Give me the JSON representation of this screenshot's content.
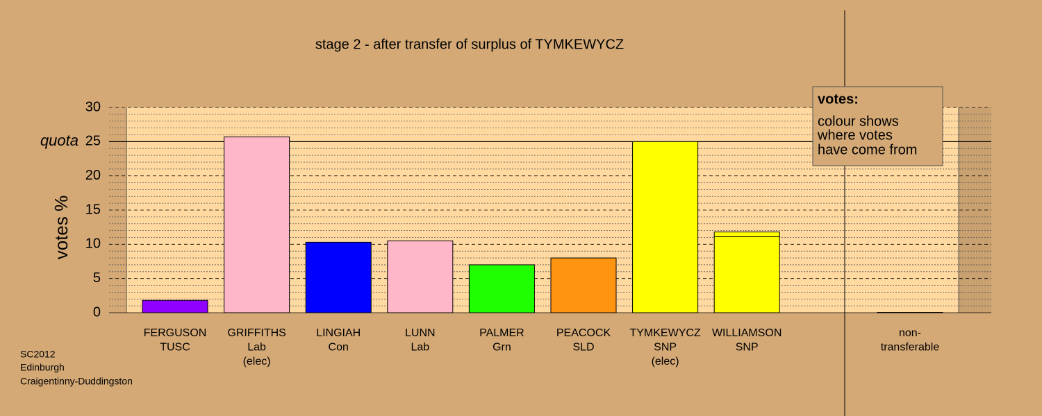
{
  "chart_data": {
    "type": "stacked_bar",
    "title": "stage 2 - after transfer of surplus of TYMKEWYCZ",
    "y_label": "votes %",
    "categories": [
      [
        "FERGUSON",
        "TUSC"
      ],
      [
        "GRIFFITHS",
        "Lab",
        "(elec)"
      ],
      [
        "LINGIAH",
        "Con"
      ],
      [
        "LUNN",
        "Lab"
      ],
      [
        "PALMER",
        "Grn"
      ],
      [
        "PEACOCK",
        "SLD"
      ],
      [
        "TYMKEWYCZ",
        "SNP",
        "(elec)"
      ],
      [
        "WILLIAMSON",
        "SNP"
      ],
      [
        "non-",
        "transferable"
      ]
    ],
    "series": [
      {
        "colors": [
          "#9000ff",
          "#ffb6c8",
          "#0000ff",
          "#ffb6c8",
          "#20ff00",
          "#ff9410",
          "#ffff00",
          "#ffff00",
          "#808080"
        ],
        "values": [
          1.8,
          25.7,
          10.3,
          10.5,
          7.0,
          8.0,
          25.0,
          11.1,
          0.05
        ]
      },
      {
        "color": "#ffff00",
        "values": [
          0,
          0,
          0,
          0,
          0,
          0,
          0,
          0.7,
          0
        ]
      }
    ],
    "ylim": [
      0,
      30
    ],
    "yticks": [
      0,
      5,
      10,
      15,
      20,
      25,
      30
    ],
    "minor_yticks": [
      1,
      2,
      3,
      4,
      6,
      7,
      8,
      9,
      11,
      12,
      13,
      14,
      16,
      17,
      18,
      19,
      21,
      22,
      23,
      24,
      26,
      27,
      28,
      29
    ],
    "quota": {
      "value": 25,
      "label": "quota"
    },
    "grid": true,
    "legend": {
      "title": "votes:",
      "lines": [
        "colour shows",
        "where votes",
        "have come from"
      ]
    },
    "footer": [
      "SC2012",
      "Edinburgh",
      "Craigentinny-Duddingston"
    ]
  }
}
